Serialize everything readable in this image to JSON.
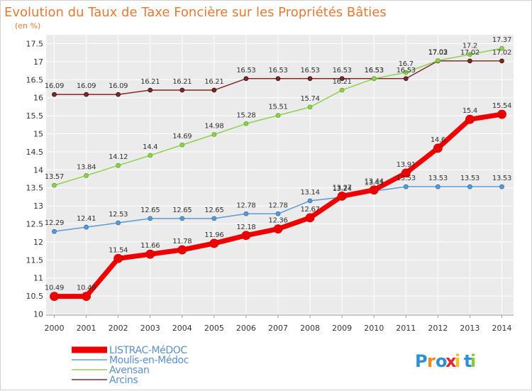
{
  "chart_data": {
    "type": "line",
    "title": "Evolution du Taux de Taxe Foncière sur les Propriétés Bâties",
    "ylabel": "(en %)",
    "xlabel": "",
    "ylim": [
      10,
      17.5
    ],
    "yticks": [
      "10",
      "10.5",
      "11",
      "11.5",
      "12",
      "12.5",
      "13",
      "13.5",
      "14",
      "14.5",
      "15",
      "15.5",
      "16",
      "16.5",
      "17",
      "17.5"
    ],
    "categories": [
      "2000",
      "2001",
      "2002",
      "2003",
      "2004",
      "2005",
      "2006",
      "2007",
      "2008",
      "2009",
      "2010",
      "2011",
      "2012",
      "2013",
      "2014"
    ],
    "series": [
      {
        "name": "Arcins",
        "color": "#7b2a2a",
        "values": [
          16.09,
          16.09,
          16.09,
          16.21,
          16.21,
          16.21,
          16.53,
          16.53,
          16.53,
          16.53,
          16.53,
          16.53,
          17.02,
          17.02,
          17.02
        ],
        "labels": [
          "16.09",
          "16.09",
          "16.09",
          "16.21",
          "16.21",
          "16.21",
          "16.53",
          "16.53",
          "16.53",
          "16.53",
          "16.53",
          "16.53",
          "17.02",
          "17.02",
          "17.02"
        ]
      },
      {
        "name": "Avensan",
        "color": "#8fd14f",
        "values": [
          13.57,
          13.84,
          14.12,
          14.4,
          14.69,
          14.98,
          15.28,
          15.51,
          15.74,
          16.21,
          16.53,
          16.7,
          17.03,
          17.2,
          17.37
        ],
        "labels": [
          "13.57",
          "13.84",
          "14.12",
          "14.4",
          "14.69",
          "14.98",
          "15.28",
          "15.51",
          "15.74",
          "16.21",
          "16.53",
          "16.7",
          "17.03",
          "17.2",
          "17.37"
        ]
      },
      {
        "name": "Moulis-en-Médoc",
        "color": "#5b9bd5",
        "values": [
          12.29,
          12.41,
          12.53,
          12.65,
          12.65,
          12.65,
          12.78,
          12.78,
          13.14,
          13.24,
          13.41,
          13.53,
          13.53,
          13.53,
          13.53
        ],
        "labels": [
          "12.29",
          "12.41",
          "12.53",
          "12.65",
          "12.65",
          "12.65",
          "12.78",
          "12.78",
          "13.14",
          "13.24",
          "13.41",
          "13.53",
          "13.53",
          "13.53",
          "13.53"
        ]
      },
      {
        "name": "LISTRAC-MéDOC",
        "color": "#ee0000",
        "values": [
          10.49,
          10.49,
          11.54,
          11.66,
          11.78,
          11.96,
          12.18,
          12.36,
          12.67,
          13.27,
          13.44,
          13.91,
          14.6,
          15.4,
          15.54
        ],
        "labels": [
          "10.49",
          "10.49",
          "11.54",
          "11.66",
          "11.78",
          "11.96",
          "12.18",
          "12.36",
          "12.67",
          "13.27",
          "13.44",
          "13.91",
          "14.6",
          "15.4",
          "15.54"
        ]
      }
    ],
    "legend_order": [
      "LISTRAC-MéDOC",
      "Moulis-en-Médoc",
      "Avensan",
      "Arcins"
    ],
    "legend_position": "bottom-left"
  },
  "logo": {
    "text": "Proxiti",
    "colors": [
      "#2d8fd6",
      "#f08a1c",
      "#2d8fd6",
      "#e8262a",
      "#f2c21b",
      "#2d8fd6",
      "#8dc63f"
    ]
  },
  "colors": {
    "title": "#e47a36",
    "plot_bg": "#ebebeb",
    "axis_text": "#333333"
  }
}
